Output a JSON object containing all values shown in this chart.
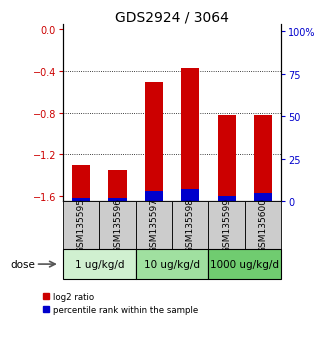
{
  "title": "GDS2924 / 3064",
  "samples": [
    "GSM135595",
    "GSM135596",
    "GSM135597",
    "GSM135598",
    "GSM135599",
    "GSM135600"
  ],
  "log2_ratio": [
    -1.3,
    -1.35,
    -0.5,
    -0.37,
    -0.82,
    -0.82
  ],
  "percentile_rank": [
    2.0,
    2.0,
    6.0,
    7.0,
    3.0,
    5.0
  ],
  "ylim_left": [
    -1.65,
    0.05
  ],
  "ylim_right": [
    0,
    104.17
  ],
  "left_ticks": [
    0,
    -0.4,
    -0.8,
    -1.2,
    -1.6
  ],
  "right_ticks": [
    0,
    25,
    50,
    75,
    100
  ],
  "groups": [
    {
      "label": "1 ug/kg/d",
      "indices": [
        0,
        1
      ],
      "color": "#d0f0d0"
    },
    {
      "label": "10 ug/kg/d",
      "indices": [
        2,
        3
      ],
      "color": "#a0e0a0"
    },
    {
      "label": "1000 ug/kg/d",
      "indices": [
        4,
        5
      ],
      "color": "#70cc70"
    }
  ],
  "dose_label": "dose",
  "red_color": "#cc0000",
  "blue_color": "#0000cc",
  "bar_width": 0.5,
  "legend_red": "log2 ratio",
  "legend_blue": "percentile rank within the sample",
  "left_tick_color": "#cc0000",
  "right_tick_color": "#0000cc",
  "sample_bg_color": "#cccccc",
  "title_fontsize": 10,
  "tick_fontsize": 7,
  "sample_fontsize": 6.5,
  "group_fontsize": 7.5,
  "dotted_lines": [
    -0.4,
    -0.8,
    -1.2
  ]
}
